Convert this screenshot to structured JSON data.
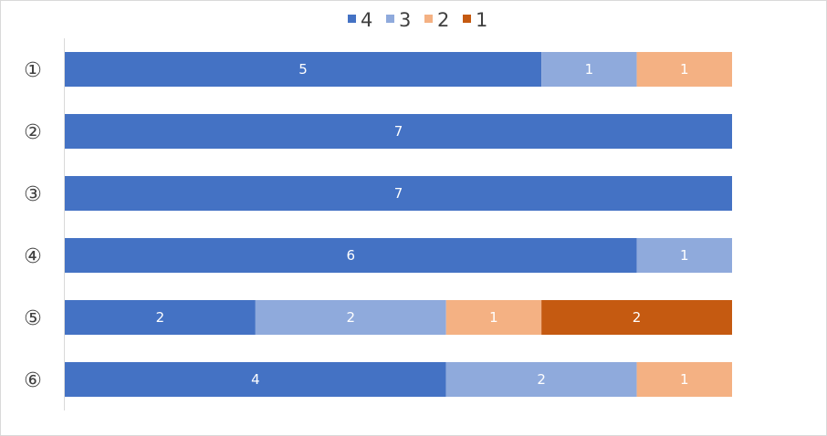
{
  "chart_data": {
    "type": "bar",
    "orientation": "horizontal",
    "stacked": true,
    "categories": [
      "①",
      "②",
      "③",
      "④",
      "⑤",
      "⑥"
    ],
    "series": [
      {
        "name": "4",
        "color": "#4472c4",
        "values": [
          5,
          7,
          7,
          6,
          2,
          4
        ]
      },
      {
        "name": "3",
        "color": "#8faadc",
        "values": [
          1,
          0,
          0,
          1,
          2,
          2
        ]
      },
      {
        "name": "2",
        "color": "#f4b183",
        "values": [
          1,
          0,
          0,
          0,
          1,
          1
        ]
      },
      {
        "name": "1",
        "color": "#c55a11",
        "values": [
          0,
          0,
          0,
          0,
          2,
          0
        ]
      }
    ],
    "xlim": [
      0,
      7
    ],
    "legend_position": "top",
    "grid": false,
    "data_labels": true
  }
}
